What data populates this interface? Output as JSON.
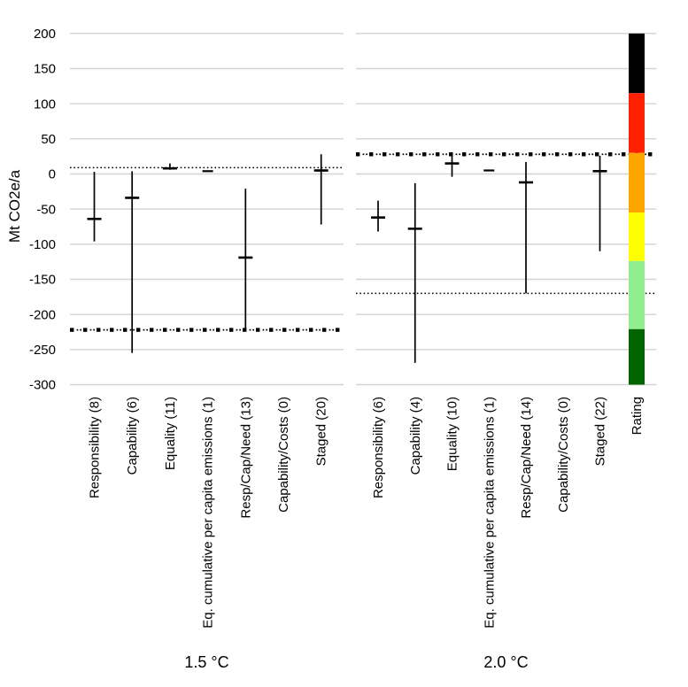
{
  "chart_data": {
    "type": "errorbar",
    "ylabel": "Mt CO2e/a",
    "ylim": [
      -300,
      200
    ],
    "yticks": [
      200,
      150,
      100,
      50,
      0,
      -50,
      -100,
      -150,
      -200,
      -250,
      -300
    ],
    "grid": true,
    "legend": "none",
    "panels": [
      {
        "title": "1.5 °C",
        "categories": [
          "Responsibility (8)",
          "Capability (6)",
          "Equality (11)",
          "Eq. cumulative per capita emissions (1)",
          "Resp/Cap/Need (13)",
          "Capability/Costs (0)",
          "Staged (20)"
        ],
        "series": [
          {
            "label": "Responsibility (8)",
            "max": 3,
            "median": -64,
            "min": -96
          },
          {
            "label": "Capability (6)",
            "max": 4,
            "median": -34,
            "min": -255
          },
          {
            "label": "Equality (11)",
            "max": 15,
            "median": 8,
            "min": 6
          },
          {
            "label": "Eq. cumulative per capita emissions (1)",
            "max": 4,
            "median": 4,
            "min": 4
          },
          {
            "label": "Resp/Cap/Need (13)",
            "max": -21,
            "median": -119,
            "min": -222
          },
          {
            "label": "Capability/Costs (0)",
            "max": null,
            "median": null,
            "min": null
          },
          {
            "label": "Staged (20)",
            "max": 28,
            "median": 5,
            "min": -72
          }
        ],
        "reference_lines": [
          {
            "style": "dotted",
            "value": 9
          },
          {
            "style": "dash-dot",
            "value": -222
          }
        ]
      },
      {
        "title": "2.0 °C",
        "categories": [
          "Responsibility (6)",
          "Capability (4)",
          "Equality (10)",
          "Eq. cumulative per capita emissions (1)",
          "Resp/Cap/Need (14)",
          "Capability/Costs (0)",
          "Staged (22)"
        ],
        "series": [
          {
            "label": "Responsibility (6)",
            "max": -38,
            "median": -62,
            "min": -82
          },
          {
            "label": "Capability (4)",
            "max": -13,
            "median": -78,
            "min": -269
          },
          {
            "label": "Equality (10)",
            "max": 31,
            "median": 15,
            "min": -4
          },
          {
            "label": "Eq. cumulative per capita emissions (1)",
            "max": 5,
            "median": 5,
            "min": 5
          },
          {
            "label": "Resp/Cap/Need (14)",
            "max": 17,
            "median": -12,
            "min": -170
          },
          {
            "label": "Capability/Costs (0)",
            "max": null,
            "median": null,
            "min": null
          },
          {
            "label": "Staged (22)",
            "max": 26,
            "median": 4,
            "min": -110
          }
        ],
        "reference_lines": [
          {
            "style": "dash-dot",
            "value": 28
          },
          {
            "style": "dotted",
            "value": -170
          }
        ]
      }
    ],
    "rating_bar": {
      "label": "Rating",
      "segments": [
        {
          "name": "black",
          "color": "#000000",
          "from": 200,
          "to": 115
        },
        {
          "name": "red",
          "color": "#ff2000",
          "from": 115,
          "to": 30
        },
        {
          "name": "orange",
          "color": "#ffa500",
          "from": 30,
          "to": -55
        },
        {
          "name": "yellow",
          "color": "#ffff00",
          "from": -55,
          "to": -124
        },
        {
          "name": "light-green",
          "color": "#90ee90",
          "from": -124,
          "to": -221
        },
        {
          "name": "dark-green",
          "color": "#006400",
          "from": -221,
          "to": -300
        }
      ]
    },
    "colors": {
      "marker": "#000000",
      "grid": "#d3d3d3",
      "background": "#ffffff"
    }
  }
}
